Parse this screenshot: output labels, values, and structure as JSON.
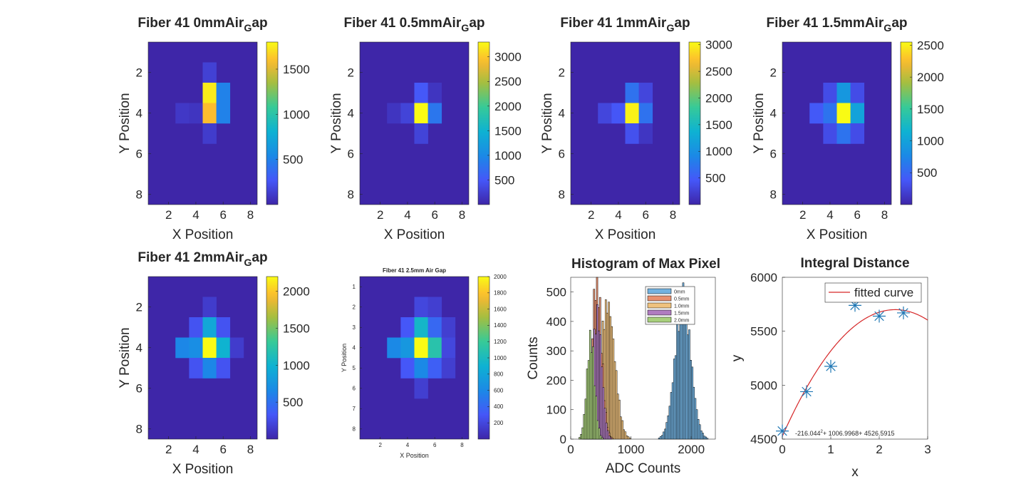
{
  "figure": {
    "heatmaps": [
      {
        "title": {
          "prefix": "Fiber 41 0mmAir",
          "sub": "G",
          "suffix": "ap"
        },
        "xlabel": "X Position",
        "ylabel": "Y Position",
        "xticks": [
          "2",
          "4",
          "6",
          "8"
        ],
        "yticks": [
          "2",
          "4",
          "6",
          "8"
        ],
        "cmax": 1800,
        "colorbar_ticks": [
          "500",
          "1000",
          "1500"
        ],
        "colorbar_values": [
          500,
          1000,
          1500
        ],
        "cells": [
          {
            "x": 5,
            "y": 2,
            "v": 150
          },
          {
            "x": 5,
            "y": 3,
            "v": 1750
          },
          {
            "x": 6,
            "y": 3,
            "v": 500
          },
          {
            "x": 3,
            "y": 4,
            "v": 100
          },
          {
            "x": 4,
            "y": 4,
            "v": 80
          },
          {
            "x": 5,
            "y": 4,
            "v": 1600
          },
          {
            "x": 6,
            "y": 4,
            "v": 500
          },
          {
            "x": 5,
            "y": 5,
            "v": 120
          }
        ]
      },
      {
        "title": {
          "prefix": "Fiber 41 0.5mmAir",
          "sub": "G",
          "suffix": "ap"
        },
        "xlabel": "X Position",
        "ylabel": "Y Position",
        "xticks": [
          "2",
          "4",
          "6",
          "8"
        ],
        "yticks": [
          "2",
          "4",
          "6",
          "8"
        ],
        "cmax": 3300,
        "colorbar_ticks": [
          "500",
          "1000",
          "1500",
          "2000",
          "2500",
          "3000"
        ],
        "colorbar_values": [
          500,
          1000,
          1500,
          2000,
          2500,
          3000
        ],
        "cells": [
          {
            "x": 5,
            "y": 3,
            "v": 500
          },
          {
            "x": 6,
            "y": 3,
            "v": 150
          },
          {
            "x": 3,
            "y": 4,
            "v": 150
          },
          {
            "x": 4,
            "y": 4,
            "v": 300
          },
          {
            "x": 5,
            "y": 4,
            "v": 3300
          },
          {
            "x": 6,
            "y": 4,
            "v": 800
          },
          {
            "x": 5,
            "y": 5,
            "v": 300
          }
        ]
      },
      {
        "title": {
          "prefix": "Fiber 41 1mmAir",
          "sub": "G",
          "suffix": "ap"
        },
        "xlabel": "X Position",
        "ylabel": "Y Position",
        "xticks": [
          "2",
          "4",
          "6",
          "8"
        ],
        "yticks": [
          "2",
          "4",
          "6",
          "8"
        ],
        "cmax": 3050,
        "colorbar_ticks": [
          "500",
          "1000",
          "1500",
          "2000",
          "2500",
          "3000"
        ],
        "colorbar_values": [
          500,
          1000,
          1500,
          2000,
          2500,
          3000
        ],
        "cells": [
          {
            "x": 5,
            "y": 3,
            "v": 700
          },
          {
            "x": 6,
            "y": 3,
            "v": 300
          },
          {
            "x": 3,
            "y": 4,
            "v": 300
          },
          {
            "x": 4,
            "y": 4,
            "v": 450
          },
          {
            "x": 5,
            "y": 4,
            "v": 3000
          },
          {
            "x": 6,
            "y": 4,
            "v": 700
          },
          {
            "x": 5,
            "y": 5,
            "v": 400
          },
          {
            "x": 6,
            "y": 5,
            "v": 150
          }
        ]
      },
      {
        "title": {
          "prefix": "Fiber 41 1.5mmAir",
          "sub": "G",
          "suffix": "ap"
        },
        "xlabel": "X Position",
        "ylabel": "Y Position",
        "xticks": [
          "2",
          "4",
          "6",
          "8"
        ],
        "yticks": [
          "2",
          "4",
          "6",
          "8"
        ],
        "cmax": 2550,
        "colorbar_ticks": [
          "500",
          "1000",
          "1500",
          "2000",
          "2500"
        ],
        "colorbar_values": [
          500,
          1000,
          1500,
          2000,
          2500
        ],
        "cells": [
          {
            "x": 4,
            "y": 3,
            "v": 300
          },
          {
            "x": 5,
            "y": 3,
            "v": 900
          },
          {
            "x": 6,
            "y": 3,
            "v": 300
          },
          {
            "x": 3,
            "y": 4,
            "v": 400
          },
          {
            "x": 4,
            "y": 4,
            "v": 600
          },
          {
            "x": 5,
            "y": 4,
            "v": 2550
          },
          {
            "x": 6,
            "y": 4,
            "v": 1000
          },
          {
            "x": 4,
            "y": 5,
            "v": 300
          },
          {
            "x": 5,
            "y": 5,
            "v": 600
          },
          {
            "x": 6,
            "y": 5,
            "v": 300
          }
        ]
      },
      {
        "title": {
          "prefix": "Fiber 41 2mmAir",
          "sub": "G",
          "suffix": "ap"
        },
        "xlabel": "X Position",
        "ylabel": "Y Position",
        "xticks": [
          "2",
          "4",
          "6",
          "8"
        ],
        "yticks": [
          "2",
          "4",
          "6",
          "8"
        ],
        "cmax": 2200,
        "colorbar_ticks": [
          "500",
          "1000",
          "1500",
          "2000"
        ],
        "colorbar_values": [
          500,
          1000,
          1500,
          2000
        ],
        "cells": [
          {
            "x": 5,
            "y": 2,
            "v": 150
          },
          {
            "x": 4,
            "y": 3,
            "v": 300
          },
          {
            "x": 5,
            "y": 3,
            "v": 900
          },
          {
            "x": 6,
            "y": 3,
            "v": 300
          },
          {
            "x": 3,
            "y": 4,
            "v": 650
          },
          {
            "x": 4,
            "y": 4,
            "v": 700
          },
          {
            "x": 5,
            "y": 4,
            "v": 2200
          },
          {
            "x": 6,
            "y": 4,
            "v": 1000
          },
          {
            "x": 7,
            "y": 4,
            "v": 150
          },
          {
            "x": 4,
            "y": 5,
            "v": 300
          },
          {
            "x": 5,
            "y": 5,
            "v": 650
          },
          {
            "x": 6,
            "y": 5,
            "v": 300
          }
        ]
      },
      {
        "title": {
          "prefix": "Fiber 41 2.5mm Air Gap",
          "sub": "",
          "suffix": ""
        },
        "xlabel": "X Position",
        "ylabel": "Y Position",
        "xticks": [
          "2",
          "4",
          "6",
          "8"
        ],
        "yticks": [
          "1",
          "2",
          "3",
          "4",
          "5",
          "6",
          "7",
          "8"
        ],
        "cmax": 2000,
        "colorbar_ticks": [
          "200",
          "400",
          "600",
          "800",
          "1000",
          "1200",
          "1400",
          "1600",
          "1800",
          "2000"
        ],
        "colorbar_values": [
          200,
          400,
          600,
          800,
          1000,
          1200,
          1400,
          1600,
          1800,
          2000
        ],
        "cells": [
          {
            "x": 5,
            "y": 2,
            "v": 200
          },
          {
            "x": 6,
            "y": 2,
            "v": 150
          },
          {
            "x": 4,
            "y": 3,
            "v": 300
          },
          {
            "x": 5,
            "y": 3,
            "v": 950
          },
          {
            "x": 6,
            "y": 3,
            "v": 400
          },
          {
            "x": 7,
            "y": 3,
            "v": 150
          },
          {
            "x": 3,
            "y": 4,
            "v": 600
          },
          {
            "x": 4,
            "y": 4,
            "v": 700
          },
          {
            "x": 5,
            "y": 4,
            "v": 2000
          },
          {
            "x": 6,
            "y": 4,
            "v": 1100
          },
          {
            "x": 7,
            "y": 4,
            "v": 200
          },
          {
            "x": 4,
            "y": 5,
            "v": 300
          },
          {
            "x": 5,
            "y": 5,
            "v": 600
          },
          {
            "x": 6,
            "y": 5,
            "v": 350
          },
          {
            "x": 7,
            "y": 5,
            "v": 150
          },
          {
            "x": 5,
            "y": 6,
            "v": 150
          }
        ]
      }
    ],
    "histogram": {
      "title": "Histogram of Max Pixel",
      "xlabel": "ADC Counts",
      "ylabel": "Counts",
      "xticks": [
        "0",
        "1000",
        "2000"
      ],
      "yticks": [
        "0",
        "100",
        "200",
        "300",
        "400",
        "500"
      ],
      "legend": [
        "0mm",
        "0.5mm",
        "1.0mm",
        "1.5mm",
        "2.0mm"
      ]
    },
    "fit": {
      "title": "Integral Distance",
      "xlabel": "x",
      "ylabel": "y",
      "xticks": [
        "0",
        "1",
        "2",
        "3"
      ],
      "yticks": [
        "4500",
        "5000",
        "5500",
        "6000"
      ],
      "legend_label": "fitted curve",
      "equation": "-216.044",
      "equation_sup": "2",
      "equation_rest": "+ 1006.9968+ 4526.5915"
    },
    "colors": {
      "axis": "#262626",
      "fit_line": "#d62728",
      "markers": "#1f77b4",
      "hist_0mm": "#73b2e0",
      "hist_05mm": "#e8906f",
      "hist_10mm": "#efc27e",
      "hist_15mm": "#b07cc0",
      "hist_20mm": "#a8cf7c",
      "heatmap_background": "#3e26a8"
    }
  },
  "chart_data": [
    {
      "type": "heatmap",
      "title": "Fiber 41 0mmAirGap",
      "xlabel": "X Position",
      "ylabel": "Y Position",
      "xlim": [
        0.5,
        8.5
      ],
      "ylim": [
        0.5,
        8.5
      ],
      "colorbar_range": [
        0,
        1800
      ],
      "cells": [
        [
          5,
          2,
          150
        ],
        [
          5,
          3,
          1750
        ],
        [
          6,
          3,
          500
        ],
        [
          3,
          4,
          100
        ],
        [
          4,
          4,
          80
        ],
        [
          5,
          4,
          1600
        ],
        [
          6,
          4,
          500
        ],
        [
          5,
          5,
          120
        ]
      ]
    },
    {
      "type": "heatmap",
      "title": "Fiber 41 0.5mmAirGap",
      "xlabel": "X Position",
      "ylabel": "Y Position",
      "xlim": [
        0.5,
        8.5
      ],
      "ylim": [
        0.5,
        8.5
      ],
      "colorbar_range": [
        0,
        3300
      ],
      "cells": [
        [
          5,
          3,
          500
        ],
        [
          6,
          3,
          150
        ],
        [
          3,
          4,
          150
        ],
        [
          4,
          4,
          300
        ],
        [
          5,
          4,
          3300
        ],
        [
          6,
          4,
          800
        ],
        [
          5,
          5,
          300
        ]
      ]
    },
    {
      "type": "heatmap",
      "title": "Fiber 41 1mmAirGap",
      "xlabel": "X Position",
      "ylabel": "Y Position",
      "xlim": [
        0.5,
        8.5
      ],
      "ylim": [
        0.5,
        8.5
      ],
      "colorbar_range": [
        0,
        3050
      ],
      "cells": [
        [
          5,
          3,
          700
        ],
        [
          6,
          3,
          300
        ],
        [
          3,
          4,
          300
        ],
        [
          4,
          4,
          450
        ],
        [
          5,
          4,
          3000
        ],
        [
          6,
          4,
          700
        ],
        [
          5,
          5,
          400
        ],
        [
          6,
          5,
          150
        ]
      ]
    },
    {
      "type": "heatmap",
      "title": "Fiber 41 1.5mmAirGap",
      "xlabel": "X Position",
      "ylabel": "Y Position",
      "xlim": [
        0.5,
        8.5
      ],
      "ylim": [
        0.5,
        8.5
      ],
      "colorbar_range": [
        0,
        2550
      ],
      "cells": [
        [
          4,
          3,
          300
        ],
        [
          5,
          3,
          900
        ],
        [
          6,
          3,
          300
        ],
        [
          3,
          4,
          400
        ],
        [
          4,
          4,
          600
        ],
        [
          5,
          4,
          2550
        ],
        [
          6,
          4,
          1000
        ],
        [
          4,
          5,
          300
        ],
        [
          5,
          5,
          600
        ],
        [
          6,
          5,
          300
        ]
      ]
    },
    {
      "type": "heatmap",
      "title": "Fiber 41 2mmAirGap",
      "xlabel": "X Position",
      "ylabel": "Y Position",
      "xlim": [
        0.5,
        8.5
      ],
      "ylim": [
        0.5,
        8.5
      ],
      "colorbar_range": [
        0,
        2200
      ],
      "cells": [
        [
          5,
          2,
          150
        ],
        [
          4,
          3,
          300
        ],
        [
          5,
          3,
          900
        ],
        [
          6,
          3,
          300
        ],
        [
          3,
          4,
          650
        ],
        [
          4,
          4,
          700
        ],
        [
          5,
          4,
          2200
        ],
        [
          6,
          4,
          1000
        ],
        [
          7,
          4,
          150
        ],
        [
          4,
          5,
          300
        ],
        [
          5,
          5,
          650
        ],
        [
          6,
          5,
          300
        ]
      ]
    },
    {
      "type": "heatmap",
      "title": "Fiber 41 2.5mm Air Gap",
      "xlabel": "X Position",
      "ylabel": "Y Position",
      "xlim": [
        0.5,
        8.5
      ],
      "ylim": [
        0.5,
        8.5
      ],
      "colorbar_range": [
        0,
        2000
      ],
      "cells": [
        [
          5,
          2,
          200
        ],
        [
          6,
          2,
          150
        ],
        [
          4,
          3,
          300
        ],
        [
          5,
          3,
          950
        ],
        [
          6,
          3,
          400
        ],
        [
          7,
          3,
          150
        ],
        [
          3,
          4,
          600
        ],
        [
          4,
          4,
          700
        ],
        [
          5,
          4,
          2000
        ],
        [
          6,
          4,
          1100
        ],
        [
          7,
          4,
          200
        ],
        [
          4,
          5,
          300
        ],
        [
          5,
          5,
          600
        ],
        [
          6,
          5,
          350
        ],
        [
          7,
          5,
          150
        ],
        [
          5,
          6,
          150
        ]
      ]
    },
    {
      "type": "bar",
      "title": "Histogram of Max Pixel",
      "xlabel": "ADC Counts",
      "ylabel": "Counts",
      "xlim": [
        0,
        2400
      ],
      "ylim": [
        0,
        550
      ],
      "series": [
        {
          "name": "0mm",
          "center": 1850,
          "sigma": 130,
          "peak": 475
        },
        {
          "name": "0.5mm",
          "center": 420,
          "sigma": 80,
          "peak": 545
        },
        {
          "name": "1.0mm",
          "center": 600,
          "sigma": 120,
          "peak": 455
        },
        {
          "name": "1.5mm",
          "center": 430,
          "sigma": 75,
          "peak": 420
        },
        {
          "name": "2.0mm",
          "center": 320,
          "sigma": 65,
          "peak": 340
        }
      ]
    },
    {
      "type": "scatter",
      "title": "Integral Distance",
      "xlabel": "x",
      "ylabel": "y",
      "xlim": [
        0,
        3
      ],
      "ylim": [
        4500,
        6000
      ],
      "points": {
        "x": [
          0,
          0.5,
          1,
          1.5,
          2,
          2.5
        ],
        "y": [
          4575,
          4940,
          5175,
          5740,
          5640,
          5670
        ]
      },
      "fit": {
        "a": -216.044,
        "b": 1006.9968,
        "c": 4526.5915,
        "label": "fitted curve"
      }
    }
  ]
}
